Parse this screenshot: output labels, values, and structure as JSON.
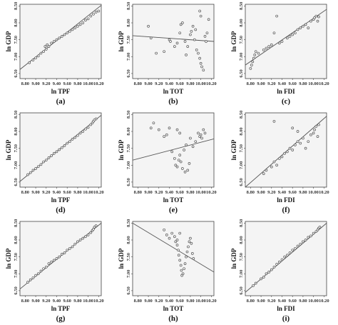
{
  "chart_data": [
    {
      "panel": "(a)",
      "type": "scatter",
      "xlabel": "ln TPF",
      "ylabel": "ln GDP",
      "xticks": [
        "8.80",
        "9.00",
        "9.20",
        "9.40",
        "9.60",
        "9.80",
        "10.00",
        "10.20"
      ],
      "yticks": [
        "6.50",
        "7.00",
        "7.50",
        "8.00",
        "8.50"
      ],
      "xlim": [
        8.7,
        10.25
      ],
      "ylim": [
        6.35,
        8.55
      ],
      "fit_line": [
        [
          8.7,
          6.62
        ],
        [
          10.25,
          8.52
        ]
      ],
      "points": [
        [
          8.88,
          6.82
        ],
        [
          8.95,
          6.9
        ],
        [
          9.0,
          6.96
        ],
        [
          9.05,
          7.02
        ],
        [
          9.1,
          7.1
        ],
        [
          9.15,
          7.15
        ],
        [
          9.18,
          7.3
        ],
        [
          9.2,
          7.22
        ],
        [
          9.22,
          7.35
        ],
        [
          9.25,
          7.3
        ],
        [
          9.3,
          7.4
        ],
        [
          9.35,
          7.45
        ],
        [
          9.4,
          7.5
        ],
        [
          9.45,
          7.55
        ],
        [
          9.5,
          7.6
        ],
        [
          9.55,
          7.65
        ],
        [
          9.6,
          7.7
        ],
        [
          9.65,
          7.75
        ],
        [
          9.7,
          7.8
        ],
        [
          9.75,
          7.85
        ],
        [
          9.8,
          7.9
        ],
        [
          9.85,
          7.95
        ],
        [
          9.9,
          8.0
        ],
        [
          9.95,
          8.08
        ],
        [
          10.0,
          8.12
        ],
        [
          10.05,
          8.2
        ],
        [
          10.1,
          8.26
        ],
        [
          10.15,
          8.32
        ],
        [
          10.2,
          8.35
        ]
      ]
    },
    {
      "panel": "(b)",
      "type": "scatter",
      "xlabel": "ln TOT",
      "ylabel": "ln GDP",
      "xticks": [
        "8.80",
        "9.00",
        "9.20",
        "9.40",
        "9.60",
        "9.80",
        "10.00",
        "10.20"
      ],
      "yticks": [
        "6.50",
        "7.00",
        "7.50",
        "8.00",
        "8.50"
      ],
      "xlim": [
        8.7,
        10.25
      ],
      "ylim": [
        6.35,
        8.55
      ],
      "fit_line": [
        [
          8.7,
          7.62
        ],
        [
          10.25,
          7.45
        ]
      ],
      "points": [
        [
          9.0,
          7.9
        ],
        [
          9.05,
          7.55
        ],
        [
          9.15,
          7.1
        ],
        [
          9.3,
          7.15
        ],
        [
          9.4,
          7.5
        ],
        [
          9.42,
          7.45
        ],
        [
          9.5,
          7.3
        ],
        [
          9.55,
          7.4
        ],
        [
          9.6,
          7.7
        ],
        [
          9.62,
          7.95
        ],
        [
          9.65,
          8.0
        ],
        [
          9.7,
          7.45
        ],
        [
          9.72,
          7.05
        ],
        [
          9.75,
          7.3
        ],
        [
          9.8,
          7.65
        ],
        [
          9.82,
          7.75
        ],
        [
          9.85,
          7.9
        ],
        [
          9.88,
          7.5
        ],
        [
          9.9,
          7.8
        ],
        [
          9.92,
          7.2
        ],
        [
          9.95,
          7.1
        ],
        [
          9.98,
          6.95
        ],
        [
          10.0,
          6.8
        ],
        [
          10.02,
          6.7
        ],
        [
          10.05,
          6.6
        ],
        [
          10.08,
          7.6
        ],
        [
          10.1,
          7.45
        ],
        [
          10.12,
          7.7
        ],
        [
          10.15,
          8.1
        ],
        [
          9.98,
          8.35
        ],
        [
          10.0,
          8.2
        ]
      ]
    },
    {
      "panel": "(c)",
      "type": "scatter",
      "xlabel": "ln FDI",
      "ylabel": "ln GDP",
      "xticks": [
        "8.80",
        "9.00",
        "9.20",
        "9.40",
        "9.60",
        "9.80",
        "10.00",
        "10.20"
      ],
      "yticks": [
        "6.50",
        "7.00",
        "7.50",
        "8.00",
        "8.50"
      ],
      "xlim": [
        8.7,
        10.25
      ],
      "ylim": [
        6.35,
        8.55
      ],
      "fit_line": [
        [
          8.7,
          6.75
        ],
        [
          10.25,
          8.4
        ]
      ],
      "points": [
        [
          8.8,
          6.65
        ],
        [
          8.82,
          6.75
        ],
        [
          8.84,
          6.85
        ],
        [
          8.86,
          6.95
        ],
        [
          8.88,
          7.05
        ],
        [
          8.9,
          7.15
        ],
        [
          8.95,
          7.1
        ],
        [
          9.05,
          7.2
        ],
        [
          9.1,
          7.25
        ],
        [
          9.15,
          7.3
        ],
        [
          9.2,
          7.35
        ],
        [
          9.25,
          7.7
        ],
        [
          9.3,
          8.2
        ],
        [
          9.35,
          7.4
        ],
        [
          9.4,
          7.45
        ],
        [
          9.5,
          7.55
        ],
        [
          9.55,
          7.6
        ],
        [
          9.6,
          7.65
        ],
        [
          9.65,
          7.7
        ],
        [
          9.7,
          7.8
        ],
        [
          9.75,
          7.85
        ],
        [
          9.8,
          7.9
        ],
        [
          9.85,
          7.95
        ],
        [
          9.9,
          7.85
        ],
        [
          9.95,
          8.05
        ],
        [
          10.0,
          8.1
        ],
        [
          10.02,
          8.15
        ],
        [
          10.05,
          8.2
        ],
        [
          10.08,
          8.05
        ],
        [
          10.1,
          8.18
        ]
      ]
    },
    {
      "panel": "(d)",
      "type": "scatter",
      "xlabel": "ln TPF",
      "ylabel": "ln GDP",
      "xticks": [
        "8.80",
        "9.00",
        "9.20",
        "9.40",
        "9.60",
        "9.80",
        "10.00",
        "10.20"
      ],
      "yticks": [
        "6.50",
        "7.00",
        "7.50",
        "8.00",
        "8.50"
      ],
      "xlim": [
        8.7,
        10.25
      ],
      "ylim": [
        6.35,
        8.55
      ],
      "fit_line": [
        [
          8.7,
          6.52
        ],
        [
          10.25,
          8.48
        ]
      ],
      "points": [
        [
          8.85,
          6.72
        ],
        [
          8.9,
          6.78
        ],
        [
          8.95,
          6.85
        ],
        [
          9.0,
          6.9
        ],
        [
          9.05,
          6.96
        ],
        [
          9.1,
          7.02
        ],
        [
          9.15,
          7.1
        ],
        [
          9.2,
          7.15
        ],
        [
          9.25,
          7.22
        ],
        [
          9.3,
          7.28
        ],
        [
          9.35,
          7.35
        ],
        [
          9.4,
          7.4
        ],
        [
          9.45,
          7.46
        ],
        [
          9.5,
          7.52
        ],
        [
          9.55,
          7.58
        ],
        [
          9.6,
          7.65
        ],
        [
          9.65,
          7.7
        ],
        [
          9.7,
          7.77
        ],
        [
          9.75,
          7.82
        ],
        [
          9.8,
          7.88
        ],
        [
          9.85,
          7.95
        ],
        [
          9.9,
          8.0
        ],
        [
          9.95,
          8.07
        ],
        [
          10.0,
          8.12
        ],
        [
          10.05,
          8.2
        ],
        [
          10.08,
          8.25
        ],
        [
          10.1,
          8.3
        ],
        [
          10.12,
          8.34
        ],
        [
          10.15,
          8.37
        ]
      ]
    },
    {
      "panel": "(e)",
      "type": "scatter",
      "xlabel": "ln TOT",
      "ylabel": "ln GDP",
      "xticks": [
        "8.80",
        "9.00",
        "9.20",
        "9.40",
        "9.60",
        "9.80",
        "10.00",
        "10.20"
      ],
      "yticks": [
        "6.50",
        "7.00",
        "7.50",
        "8.00",
        "8.50"
      ],
      "xlim": [
        8.7,
        10.25
      ],
      "ylim": [
        6.35,
        8.55
      ],
      "fit_line": [
        [
          8.7,
          7.15
        ],
        [
          10.25,
          7.78
        ]
      ],
      "points": [
        [
          9.05,
          8.1
        ],
        [
          9.1,
          8.25
        ],
        [
          9.2,
          8.05
        ],
        [
          9.3,
          7.85
        ],
        [
          9.35,
          7.9
        ],
        [
          9.4,
          8.1
        ],
        [
          9.45,
          7.4
        ],
        [
          9.5,
          7.2
        ],
        [
          9.52,
          7.0
        ],
        [
          9.55,
          6.95
        ],
        [
          9.58,
          7.15
        ],
        [
          9.6,
          7.3
        ],
        [
          9.62,
          7.1
        ],
        [
          9.65,
          6.9
        ],
        [
          9.68,
          7.45
        ],
        [
          9.7,
          6.8
        ],
        [
          9.72,
          7.6
        ],
        [
          9.75,
          6.85
        ],
        [
          9.78,
          7.05
        ],
        [
          9.8,
          7.8
        ],
        [
          9.85,
          7.55
        ],
        [
          9.9,
          7.7
        ],
        [
          9.95,
          7.95
        ],
        [
          9.98,
          7.85
        ],
        [
          10.0,
          7.9
        ],
        [
          10.02,
          7.8
        ],
        [
          10.05,
          8.05
        ],
        [
          10.08,
          7.95
        ],
        [
          9.55,
          8.05
        ],
        [
          9.6,
          7.95
        ]
      ]
    },
    {
      "panel": "(f)",
      "type": "scatter",
      "xlabel": "ln FDI",
      "ylabel": "ln GDP",
      "xticks": [
        "8.80",
        "9.00",
        "9.20",
        "9.40",
        "9.60",
        "9.80",
        "10.00",
        "10.20"
      ],
      "yticks": [
        "6.50",
        "7.00",
        "7.50",
        "8.00",
        "8.50"
      ],
      "xlim": [
        8.7,
        10.25
      ],
      "ylim": [
        6.35,
        8.55
      ],
      "fit_line": [
        [
          8.7,
          6.35
        ],
        [
          10.25,
          8.45
        ]
      ],
      "points": [
        [
          9.05,
          6.75
        ],
        [
          9.1,
          6.85
        ],
        [
          9.2,
          6.95
        ],
        [
          9.25,
          7.1
        ],
        [
          9.3,
          7.0
        ],
        [
          9.35,
          7.2
        ],
        [
          9.4,
          7.25
        ],
        [
          9.45,
          7.35
        ],
        [
          9.5,
          7.4
        ],
        [
          9.55,
          7.5
        ],
        [
          9.6,
          7.45
        ],
        [
          9.65,
          7.6
        ],
        [
          9.7,
          7.7
        ],
        [
          9.75,
          7.65
        ],
        [
          9.8,
          7.8
        ],
        [
          9.85,
          7.5
        ],
        [
          9.9,
          7.7
        ],
        [
          9.95,
          7.9
        ],
        [
          10.0,
          7.95
        ],
        [
          10.02,
          8.05
        ],
        [
          10.05,
          8.15
        ],
        [
          10.08,
          7.85
        ],
        [
          10.1,
          8.2
        ],
        [
          9.7,
          8.0
        ],
        [
          9.6,
          8.1
        ],
        [
          9.25,
          8.3
        ]
      ]
    },
    {
      "panel": "(g)",
      "type": "scatter",
      "xlabel": "ln TPF",
      "ylabel": "ln GDP",
      "xticks": [
        "8.80",
        "9.00",
        "9.20",
        "9.40",
        "9.60",
        "9.80",
        "10.00",
        "10.20"
      ],
      "yticks": [
        "6.50",
        "7.00",
        "7.50",
        "8.00",
        "8.50"
      ],
      "xlim": [
        8.7,
        10.25
      ],
      "ylim": [
        6.35,
        8.55
      ],
      "fit_line": [
        [
          8.7,
          6.55
        ],
        [
          10.25,
          8.5
        ]
      ],
      "points": [
        [
          8.85,
          6.75
        ],
        [
          8.9,
          6.82
        ],
        [
          8.95,
          6.88
        ],
        [
          9.0,
          6.95
        ],
        [
          9.05,
          7.0
        ],
        [
          9.1,
          7.08
        ],
        [
          9.15,
          7.15
        ],
        [
          9.2,
          7.2
        ],
        [
          9.25,
          7.3
        ],
        [
          9.3,
          7.35
        ],
        [
          9.35,
          7.4
        ],
        [
          9.4,
          7.45
        ],
        [
          9.45,
          7.5
        ],
        [
          9.5,
          7.58
        ],
        [
          9.55,
          7.62
        ],
        [
          9.6,
          7.7
        ],
        [
          9.65,
          7.75
        ],
        [
          9.7,
          7.8
        ],
        [
          9.75,
          7.88
        ],
        [
          9.8,
          7.95
        ],
        [
          9.85,
          8.0
        ],
        [
          9.9,
          8.05
        ],
        [
          9.95,
          8.1
        ],
        [
          10.0,
          8.15
        ],
        [
          10.05,
          8.22
        ],
        [
          10.08,
          8.28
        ],
        [
          10.1,
          8.32
        ],
        [
          10.12,
          8.38
        ],
        [
          10.15,
          8.42
        ]
      ]
    },
    {
      "panel": "(h)",
      "type": "scatter",
      "xlabel": "ln TOT",
      "ylabel": "ln GDP",
      "xticks": [
        "8.80",
        "9.00",
        "9.20",
        "9.40",
        "9.60",
        "9.80",
        "10.00",
        "10.20"
      ],
      "yticks": [
        "6.50",
        "7.00",
        "7.50",
        "8.00",
        "8.50"
      ],
      "xlim": [
        8.7,
        10.25
      ],
      "ylim": [
        6.35,
        8.55
      ],
      "fit_line": [
        [
          8.7,
          8.5
        ],
        [
          10.25,
          7.05
        ]
      ],
      "points": [
        [
          9.3,
          8.3
        ],
        [
          9.35,
          8.15
        ],
        [
          9.4,
          8.05
        ],
        [
          9.45,
          8.2
        ],
        [
          9.5,
          8.1
        ],
        [
          9.52,
          7.95
        ],
        [
          9.55,
          7.85
        ],
        [
          9.57,
          7.7
        ],
        [
          9.58,
          7.55
        ],
        [
          9.6,
          7.4
        ],
        [
          9.62,
          7.25
        ],
        [
          9.63,
          7.1
        ],
        [
          9.64,
          6.95
        ],
        [
          9.66,
          7.0
        ],
        [
          9.68,
          7.15
        ],
        [
          9.7,
          7.3
        ],
        [
          9.72,
          7.5
        ],
        [
          9.74,
          7.65
        ],
        [
          9.76,
          7.8
        ],
        [
          9.78,
          7.95
        ],
        [
          9.8,
          8.05
        ],
        [
          9.82,
          7.9
        ],
        [
          9.84,
          7.6
        ],
        [
          9.86,
          7.45
        ],
        [
          9.6,
          8.2
        ],
        [
          9.55,
          8.0
        ]
      ]
    },
    {
      "panel": "(i)",
      "type": "scatter",
      "xlabel": "ln FDI",
      "ylabel": "ln GDP",
      "xticks": [
        "8.80",
        "9.00",
        "9.20",
        "9.40",
        "9.60",
        "9.80",
        "10.00",
        "10.20"
      ],
      "yticks": [
        "6.50",
        "7.00",
        "7.50",
        "8.00",
        "8.50"
      ],
      "xlim": [
        8.7,
        10.25
      ],
      "ylim": [
        6.35,
        8.55
      ],
      "fit_line": [
        [
          8.7,
          6.45
        ],
        [
          10.25,
          8.5
        ]
      ],
      "points": [
        [
          8.85,
          6.65
        ],
        [
          8.9,
          6.72
        ],
        [
          9.0,
          6.85
        ],
        [
          9.05,
          6.9
        ],
        [
          9.1,
          7.0
        ],
        [
          9.15,
          7.05
        ],
        [
          9.2,
          7.12
        ],
        [
          9.25,
          7.2
        ],
        [
          9.3,
          7.28
        ],
        [
          9.35,
          7.35
        ],
        [
          9.4,
          7.42
        ],
        [
          9.45,
          7.5
        ],
        [
          9.5,
          7.55
        ],
        [
          9.55,
          7.62
        ],
        [
          9.6,
          7.7
        ],
        [
          9.65,
          7.75
        ],
        [
          9.7,
          7.82
        ],
        [
          9.75,
          7.88
        ],
        [
          9.8,
          7.95
        ],
        [
          9.85,
          8.0
        ],
        [
          9.9,
          8.08
        ],
        [
          9.95,
          8.12
        ],
        [
          10.0,
          8.2
        ],
        [
          10.05,
          8.25
        ],
        [
          10.08,
          8.3
        ],
        [
          10.1,
          8.35
        ],
        [
          10.12,
          8.38
        ]
      ]
    }
  ]
}
